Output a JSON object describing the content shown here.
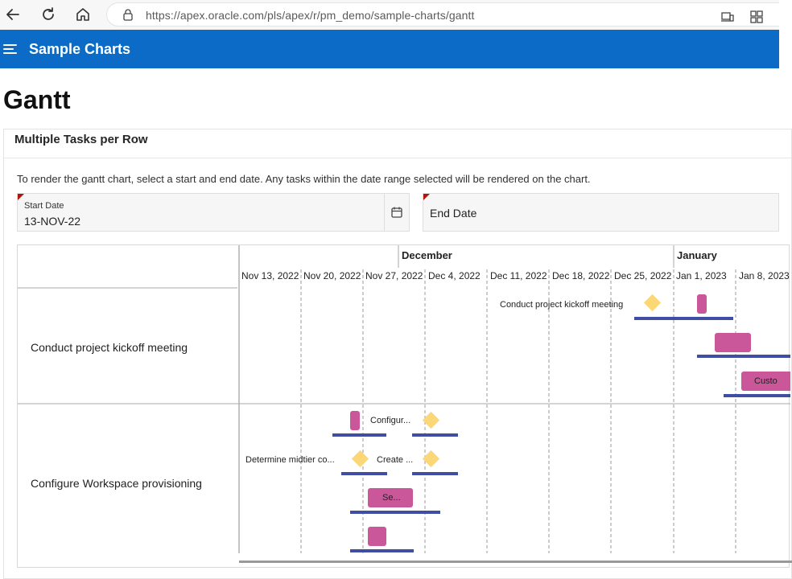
{
  "browser": {
    "url": "https://apex.oracle.com/pls/apex/r/pm_demo/sample-charts/gantt"
  },
  "app": {
    "title": "Sample Charts"
  },
  "page": {
    "title": "Gantt"
  },
  "region": {
    "title": "Multiple Tasks per Row",
    "info": "To render the gantt chart, select a start and end date. Any tasks within the date range selected will be rendered on the chart."
  },
  "form": {
    "start_date": {
      "label": "Start Date",
      "value": "13-NOV-22"
    },
    "end_date": {
      "label": "End Date",
      "value": ""
    }
  },
  "gantt": {
    "major_labels": [
      "December",
      "January"
    ],
    "minor_labels": [
      "Nov 13, 2022",
      "Nov 20, 2022",
      "Nov 27, 2022",
      "Dec 4, 2022",
      "Dec 11, 2022",
      "Dec 18, 2022",
      "Dec 25, 2022",
      "Jan 1, 2023",
      "Jan 8, 2023"
    ],
    "rows": [
      {
        "label": "Conduct project kickoff meeting",
        "task_labels": [
          "Conduct project kickoff meeting",
          "Custo"
        ]
      },
      {
        "label": "Configure Workspace provisioning",
        "task_labels": [
          "Configur...",
          "Determine midtier co...",
          "Create ...",
          "Se..."
        ]
      }
    ],
    "colors": {
      "task": "#c9579a",
      "milestone": "#fbd875",
      "baseline": "#3f4ea3",
      "gridline": "#9a9a9a"
    }
  }
}
